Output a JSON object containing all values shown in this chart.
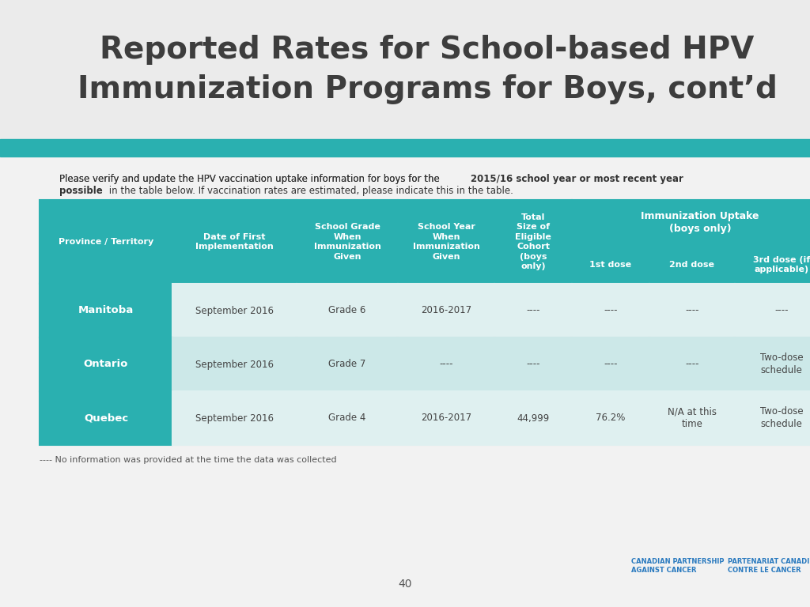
{
  "title_line1": "Reported Rates for School-based HPV",
  "title_line2": "Immunization Programs for Boys, cont’d",
  "title_color": "#3d3d3d",
  "teal_color": "#2ab0b0",
  "bg_color": "#f2f2f2",
  "header_bg": "#2ab0b0",
  "header_text_color": "#ffffff",
  "row_bg_light": "#dff0f0",
  "row_bg_mid": "#cce8e8",
  "province_bg": "#2ab0b0",
  "province_text": "#ffffff",
  "body_text_color": "#555555",
  "intro_normal1": "Please verify and update the HPV vaccination uptake information for boys for the ",
  "intro_bold": "2015/16 school year or most recent year\npossible",
  "intro_normal2": " in the table below. If vaccination rates are estimated, please indicate this in the table.",
  "footnote": "---- No information was provided at the time the data was collected",
  "page_number": "40",
  "col_labels": [
    "Province / Territory",
    "Date of First\nImplementation",
    "School Grade\nWhen\nImmunization\nGiven",
    "School Year\nWhen\nImmunization\nGiven",
    "Total\nSize of\nEligible\nCohort\n(boys\nonly)",
    "1st dose",
    "2nd dose",
    "3rd dose (if\napplicable)"
  ],
  "imm_uptake_label": "Immunization Uptake\n(boys only)",
  "rows": [
    {
      "province": "Manitoba",
      "date": "September 2016",
      "grade": "Grade 6",
      "year": "2016-2017",
      "cohort": "----",
      "dose1": "----",
      "dose2": "----",
      "dose3": "----"
    },
    {
      "province": "Ontario",
      "date": "September 2016",
      "grade": "Grade 7",
      "year": "----",
      "cohort": "----",
      "dose1": "----",
      "dose2": "----",
      "dose3": "Two-dose\nschedule"
    },
    {
      "province": "Quebec",
      "date": "September 2016",
      "grade": "Grade 4",
      "year": "2016-2017",
      "cohort": "44,999",
      "dose1": "76.2%",
      "dose2": "N/A at this\ntime",
      "dose3": "Two-dose\nschedule"
    }
  ]
}
